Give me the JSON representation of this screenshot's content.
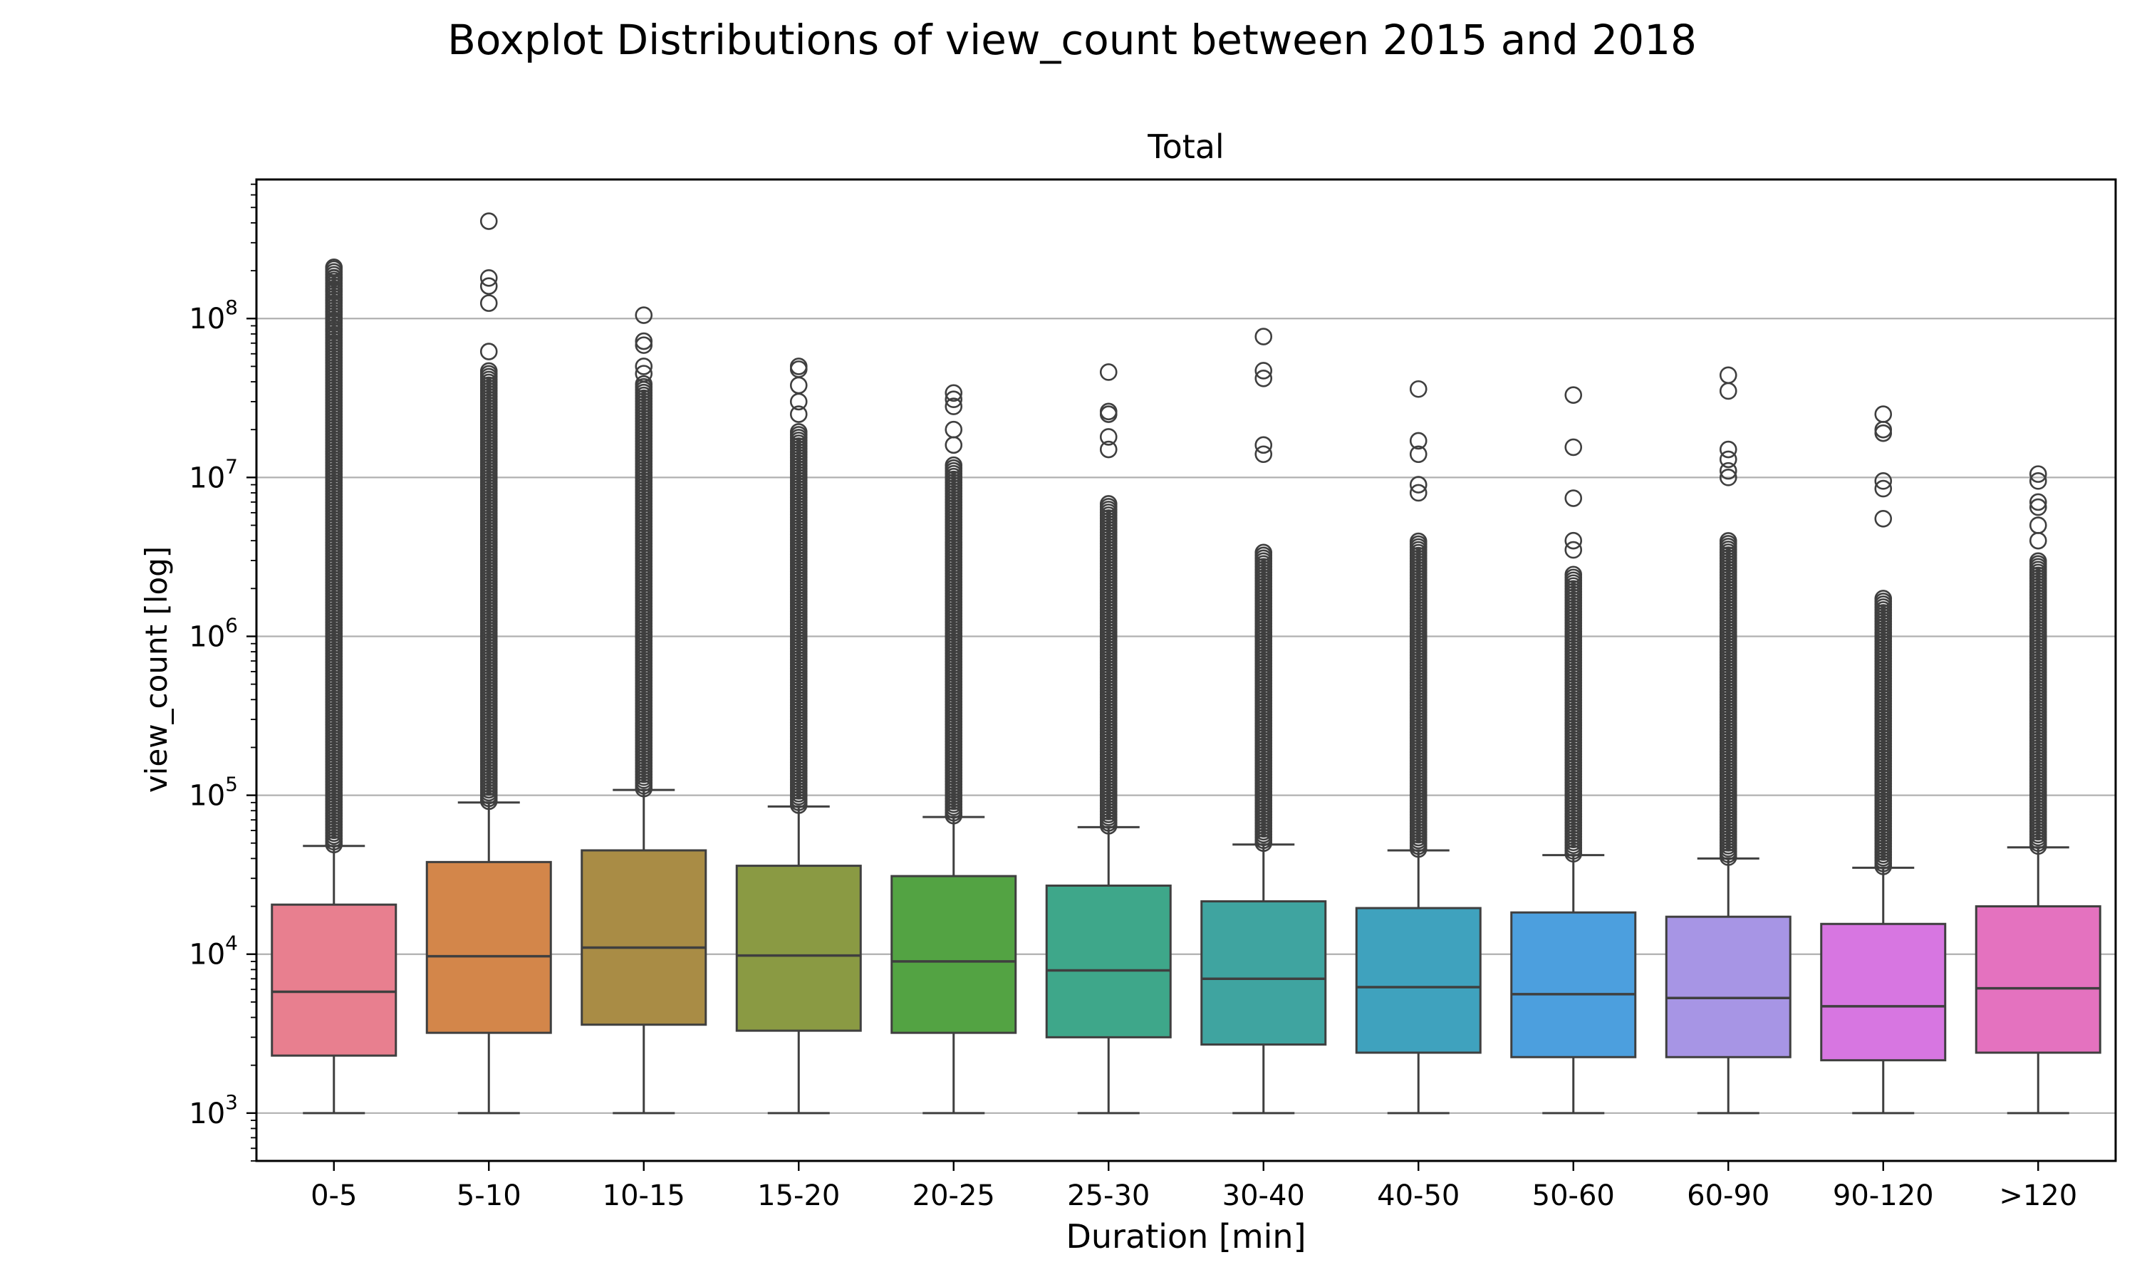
{
  "figure": {
    "suptitle": "Boxplot Distributions of view_count between 2015 and 2018"
  },
  "chart_data": {
    "type": "boxplot",
    "title": "Total",
    "xlabel": "Duration [min]",
    "ylabel": "view_count [log]",
    "yscale": "log",
    "ylim": [
      500,
      750000000
    ],
    "yticks": [
      {
        "value": 1000,
        "base": "10",
        "exp": "3"
      },
      {
        "value": 10000,
        "base": "10",
        "exp": "4"
      },
      {
        "value": 100000,
        "base": "10",
        "exp": "5"
      },
      {
        "value": 1000000,
        "base": "10",
        "exp": "6"
      },
      {
        "value": 10000000,
        "base": "10",
        "exp": "7"
      },
      {
        "value": 100000000,
        "base": "10",
        "exp": "8"
      }
    ],
    "grid": "horizontal",
    "categories": [
      "0-5",
      "5-10",
      "10-15",
      "15-20",
      "20-25",
      "25-30",
      "30-40",
      "40-50",
      "50-60",
      "60-90",
      "90-120",
      ">120"
    ],
    "boxes": [
      {
        "min": 1000,
        "q1": 2300,
        "median": 5800,
        "q3": 20500,
        "whisker_high": 48000,
        "color": "#e87f8f",
        "outlier_max": 210000000,
        "outliers_top": [
          210000000,
          180000000,
          150000000,
          130000000,
          110000000,
          95000000,
          85000000,
          70000000
        ]
      },
      {
        "min": 1000,
        "q1": 3200,
        "median": 9700,
        "q3": 38000,
        "whisker_high": 90000,
        "color": "#d3864a",
        "outlier_max": 48000000,
        "outliers_top": [
          410000000,
          180000000,
          160000000,
          125000000,
          62000000
        ]
      },
      {
        "min": 1000,
        "q1": 3600,
        "median": 11000,
        "q3": 45000,
        "whisker_high": 108000,
        "color": "#a98c45",
        "outlier_max": 40000000,
        "outliers_top": [
          105000000,
          72000000,
          68000000,
          50000000,
          45000000
        ]
      },
      {
        "min": 1000,
        "q1": 3300,
        "median": 9800,
        "q3": 36000,
        "whisker_high": 85000,
        "color": "#8a9a43",
        "outlier_max": 20000000,
        "outliers_top": [
          50000000,
          48000000,
          38000000,
          30000000,
          25000000
        ]
      },
      {
        "min": 1000,
        "q1": 3200,
        "median": 9000,
        "q3": 31000,
        "whisker_high": 73000,
        "color": "#53a343",
        "outlier_max": 12000000,
        "outliers_top": [
          34000000,
          31000000,
          28000000,
          20000000,
          16000000
        ]
      },
      {
        "min": 1000,
        "q1": 3000,
        "median": 7900,
        "q3": 27000,
        "whisker_high": 63000,
        "color": "#3ea78a",
        "outlier_max": 7000000,
        "outliers_top": [
          46000000,
          26000000,
          25000000,
          18000000,
          15000000
        ]
      },
      {
        "min": 1000,
        "q1": 2700,
        "median": 7000,
        "q3": 21500,
        "whisker_high": 49000,
        "color": "#3fa4a0",
        "outlier_max": 3500000,
        "outliers_top": [
          77000000,
          47000000,
          42000000,
          16000000,
          14000000
        ]
      },
      {
        "min": 1000,
        "q1": 2400,
        "median": 6200,
        "q3": 19500,
        "whisker_high": 45000,
        "color": "#3fa2be",
        "outlier_max": 4000000,
        "outliers_top": [
          36000000,
          17000000,
          14000000,
          9000000,
          8000000
        ]
      },
      {
        "min": 1000,
        "q1": 2250,
        "median": 5600,
        "q3": 18300,
        "whisker_high": 42000,
        "color": "#4c9fde",
        "outlier_max": 2500000,
        "outliers_top": [
          33000000,
          15500000,
          7400000,
          4000000,
          3500000
        ]
      },
      {
        "min": 1000,
        "q1": 2250,
        "median": 5300,
        "q3": 17200,
        "whisker_high": 40000,
        "color": "#a795e5",
        "outlier_max": 4000000,
        "outliers_top": [
          44000000,
          35000000,
          15000000,
          13000000,
          11000000,
          10000000
        ]
      },
      {
        "min": 1000,
        "q1": 2150,
        "median": 4700,
        "q3": 15500,
        "whisker_high": 35000,
        "color": "#d776e1",
        "outlier_max": 1800000,
        "outliers_top": [
          25000000,
          20000000,
          19000000,
          9500000,
          8500000,
          5500000
        ]
      },
      {
        "min": 1000,
        "q1": 2400,
        "median": 6100,
        "q3": 20000,
        "whisker_high": 47000,
        "color": "#e472bf",
        "outlier_max": 3000000,
        "outliers_top": [
          10500000,
          9500000,
          7000000,
          6500000,
          5000000,
          4000000
        ]
      }
    ]
  }
}
